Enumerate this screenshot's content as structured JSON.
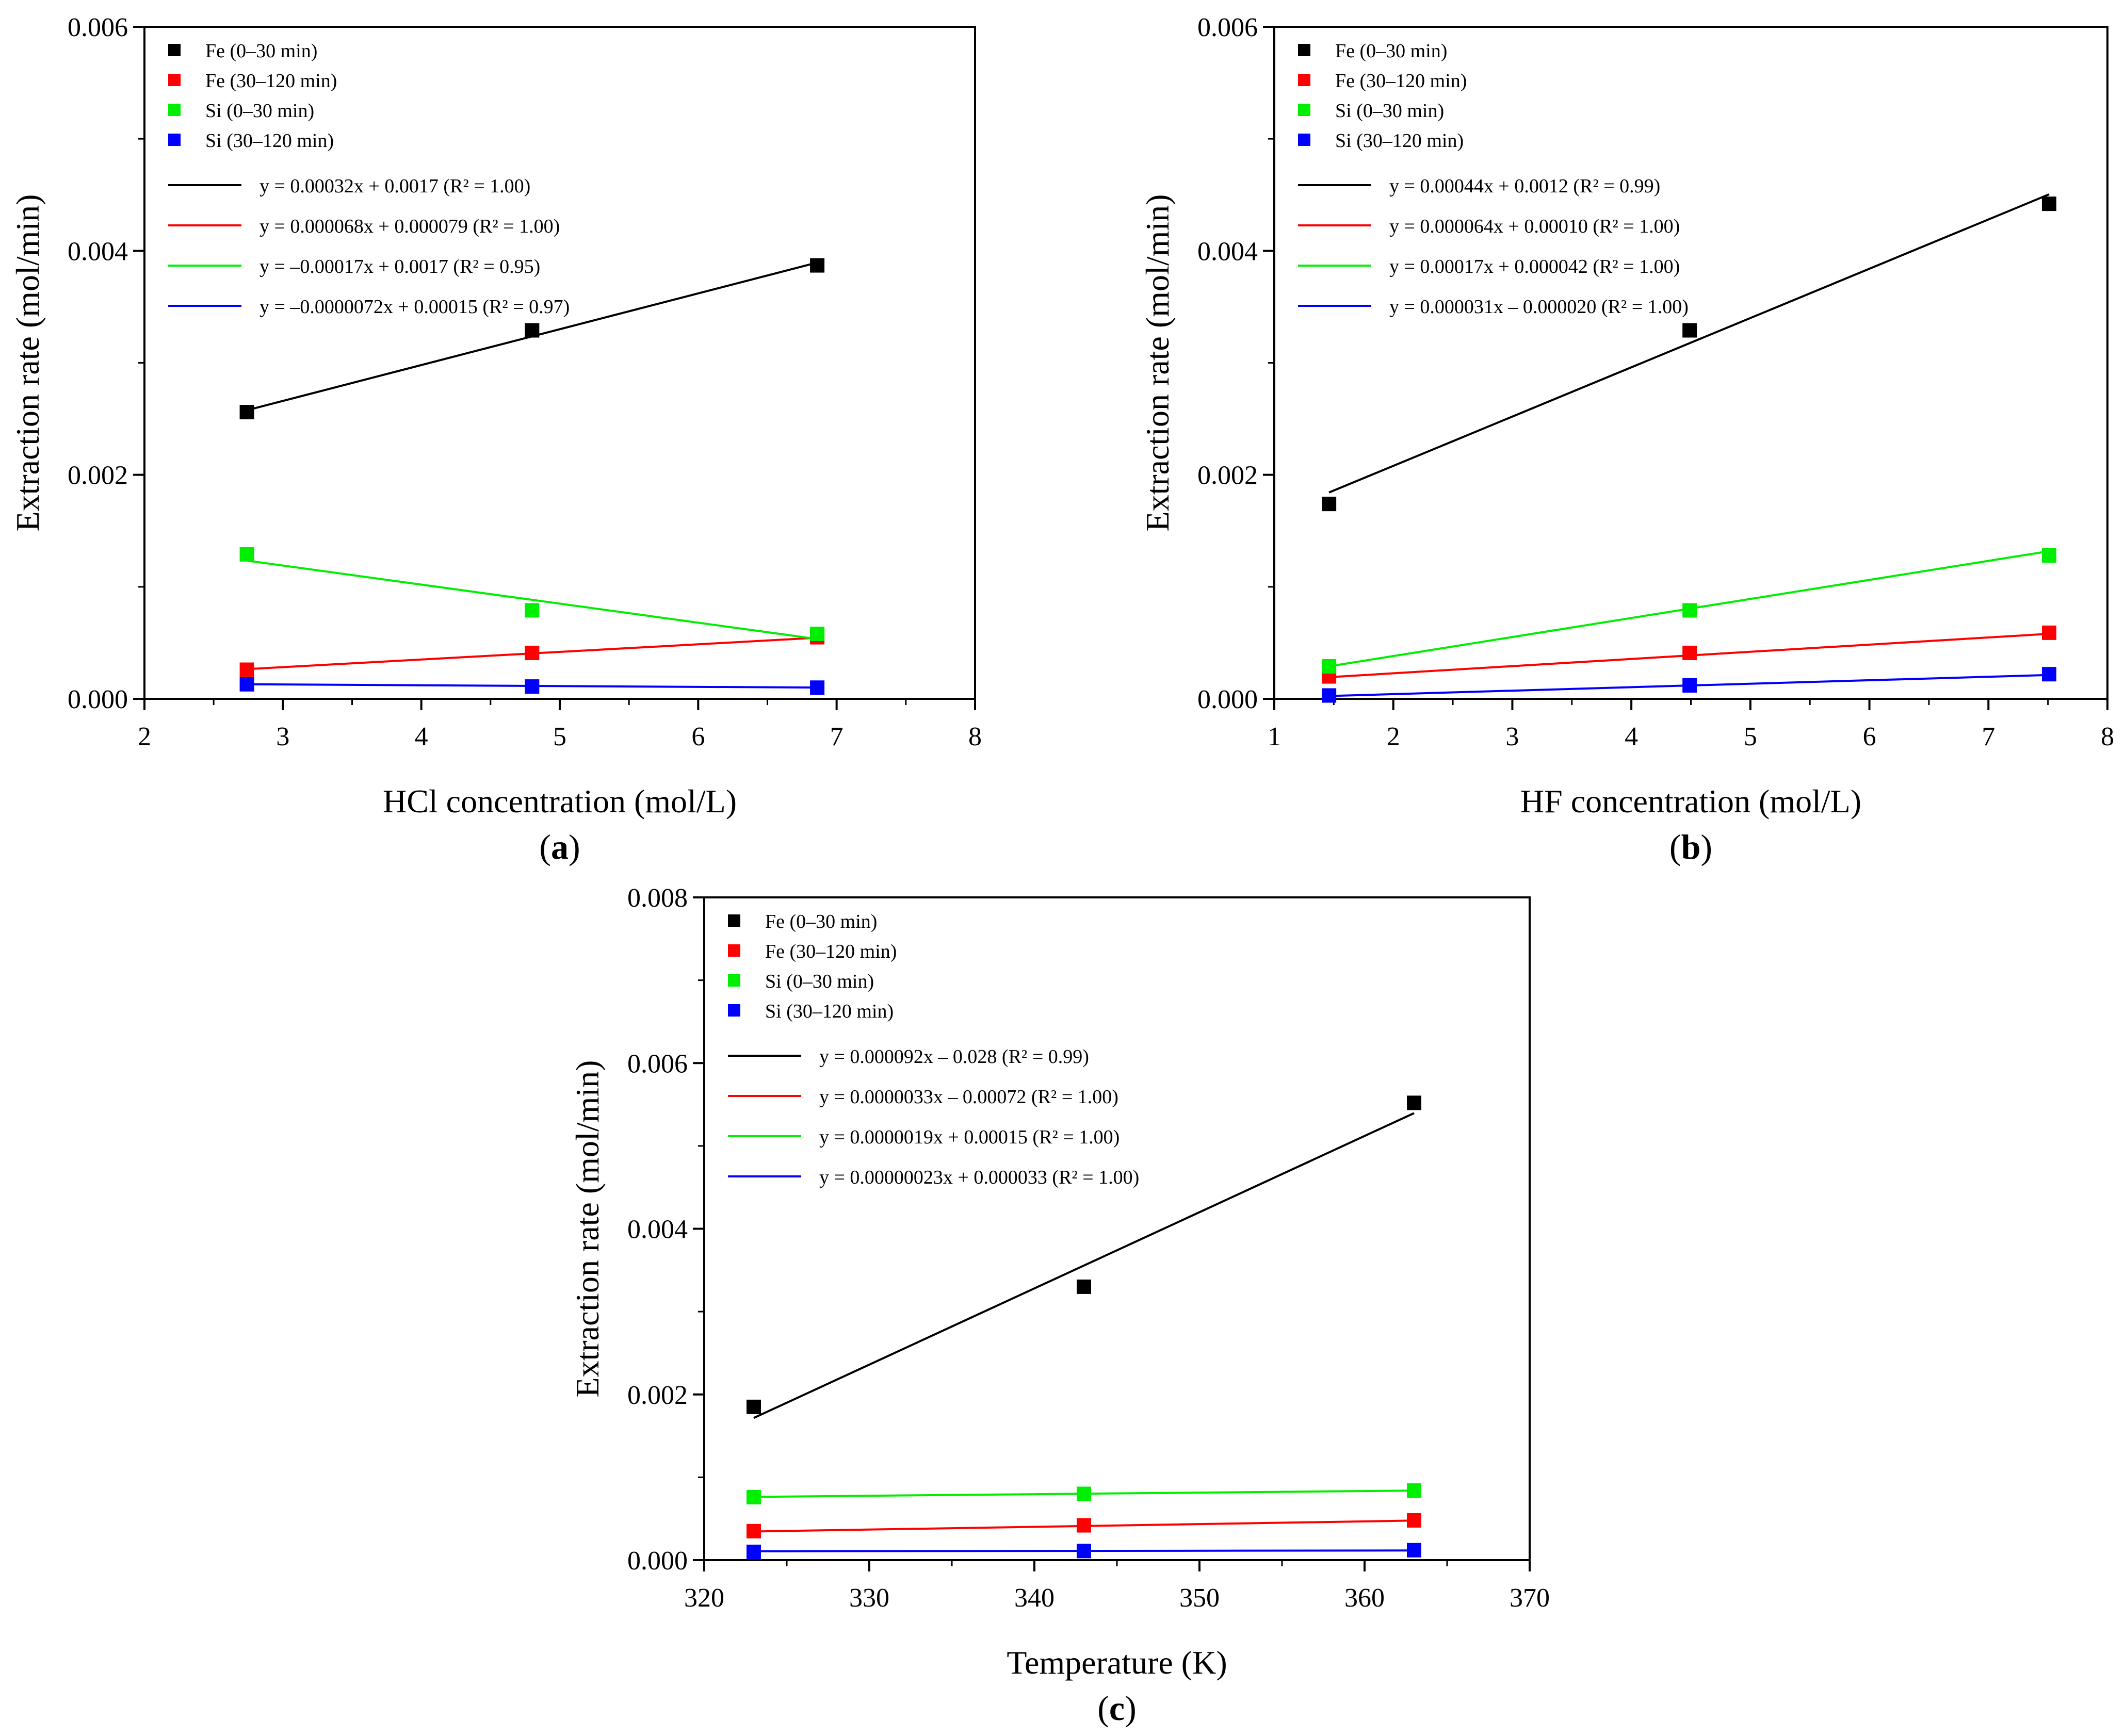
{
  "figure": {
    "colors": {
      "fe_early": "#000000",
      "fe_late": "#ff0000",
      "si_early": "#00ee00",
      "si_late": "#0000ff",
      "axis": "#000000"
    }
  },
  "chart_data": [
    {
      "type": "scatter",
      "panel_label": "a",
      "xlabel": "HCl concentration (mol/L)",
      "ylabel": "Extraction rate (mol/min)",
      "xlim": [
        2,
        8
      ],
      "ylim": [
        0,
        0.006
      ],
      "x_ticks": [
        "2",
        "3",
        "4",
        "5",
        "6",
        "7",
        "8"
      ],
      "y_ticks": [
        "0.000",
        "0.002",
        "0.004",
        "0.006"
      ],
      "legend_placement": "top-left",
      "series": [
        {
          "name": "Fe (0–30 min)",
          "color": "#000000",
          "x": [
            2.74,
            4.8,
            6.86
          ],
          "y": [
            0.00256,
            0.00329,
            0.00387
          ]
        },
        {
          "name": "Fe (30–120 min)",
          "color": "#ff0000",
          "x": [
            2.74,
            4.8,
            6.86
          ],
          "y": [
            0.00026,
            0.00041,
            0.00055
          ]
        },
        {
          "name": "Si (0–30 min)",
          "color": "#00ee00",
          "x": [
            2.74,
            4.8,
            6.86
          ],
          "y": [
            0.00129,
            0.00079,
            0.00058
          ]
        },
        {
          "name": "Si (30–120 min)",
          "color": "#0000ff",
          "x": [
            2.74,
            4.8,
            6.86
          ],
          "y": [
            0.00013,
            0.00011,
            0.0001
          ]
        }
      ],
      "fits": [
        {
          "label": "y = 0.00032x + 0.0017 (R² = 1.00)",
          "color": "#000000",
          "slope": 0.00032,
          "intercept": 0.0017,
          "x_range": [
            2.74,
            6.86
          ]
        },
        {
          "label": "y = 0.000068x + 0.000079 (R² = 1.00)",
          "color": "#ff0000",
          "slope": 6.8e-05,
          "intercept": 7.9e-05,
          "x_range": [
            2.74,
            6.86
          ]
        },
        {
          "label": "y = –0.00017x + 0.0017 (R² = 0.95)",
          "color": "#00ee00",
          "slope": -0.00017,
          "intercept": 0.0017,
          "x_range": [
            2.74,
            6.86
          ]
        },
        {
          "label": "y = –0.0000072x + 0.00015 (R² = 0.97)",
          "color": "#0000ff",
          "slope": -7.2e-06,
          "intercept": 0.00015,
          "x_range": [
            2.74,
            6.86
          ]
        }
      ]
    },
    {
      "type": "scatter",
      "panel_label": "b",
      "xlabel": "HF concentration (mol/L)",
      "ylabel": "Extraction rate (mol/min)",
      "xlim": [
        1,
        8
      ],
      "ylim": [
        0,
        0.006
      ],
      "x_ticks": [
        "1",
        "2",
        "3",
        "4",
        "5",
        "6",
        "7",
        "8"
      ],
      "y_ticks": [
        "0.000",
        "0.002",
        "0.004",
        "0.006"
      ],
      "legend_placement": "top-left",
      "series": [
        {
          "name": "Fe (0–30 min)",
          "color": "#000000",
          "x": [
            1.46,
            4.49,
            7.51
          ],
          "y": [
            0.00174,
            0.00329,
            0.00442
          ]
        },
        {
          "name": "Fe (30–120 min)",
          "color": "#ff0000",
          "x": [
            1.46,
            4.49,
            7.51
          ],
          "y": [
            0.0002,
            0.00041,
            0.00059
          ]
        },
        {
          "name": "Si (0–30 min)",
          "color": "#00ee00",
          "x": [
            1.46,
            4.49,
            7.51
          ],
          "y": [
            0.00029,
            0.00079,
            0.00128
          ]
        },
        {
          "name": "Si (30–120 min)",
          "color": "#0000ff",
          "x": [
            1.46,
            4.49,
            7.51
          ],
          "y": [
            3e-05,
            0.00012,
            0.00022
          ]
        }
      ],
      "fits": [
        {
          "label": "y = 0.00044x + 0.0012 (R² = 0.99)",
          "color": "#000000",
          "slope": 0.00044,
          "intercept": 0.0012,
          "x_range": [
            1.46,
            7.51
          ]
        },
        {
          "label": "y = 0.000064x + 0.00010 (R² = 1.00)",
          "color": "#ff0000",
          "slope": 6.4e-05,
          "intercept": 0.0001,
          "x_range": [
            1.46,
            7.51
          ]
        },
        {
          "label": "y = 0.00017x + 0.000042 (R² = 1.00)",
          "color": "#00ee00",
          "slope": 0.00017,
          "intercept": 4.2e-05,
          "x_range": [
            1.46,
            7.51
          ]
        },
        {
          "label": "y = 0.000031x – 0.000020 (R² = 1.00)",
          "color": "#0000ff",
          "slope": 3.1e-05,
          "intercept": -2e-05,
          "x_range": [
            1.46,
            7.51
          ]
        }
      ]
    },
    {
      "type": "scatter",
      "panel_label": "c",
      "xlabel": "Temperature (K)",
      "ylabel": "Extraction rate (mol/min)",
      "xlim": [
        320,
        370
      ],
      "ylim": [
        0,
        0.008
      ],
      "x_ticks": [
        "320",
        "330",
        "340",
        "350",
        "360",
        "370"
      ],
      "y_ticks": [
        "0.000",
        "0.002",
        "0.004",
        "0.006",
        "0.008"
      ],
      "legend_placement": "top-left",
      "series": [
        {
          "name": "Fe (0–30 min)",
          "color": "#000000",
          "x": [
            323,
            343,
            363
          ],
          "y": [
            0.00185,
            0.0033,
            0.00552
          ]
        },
        {
          "name": "Fe (30–120 min)",
          "color": "#ff0000",
          "x": [
            323,
            343,
            363
          ],
          "y": [
            0.00035,
            0.00042,
            0.00048
          ]
        },
        {
          "name": "Si (0–30 min)",
          "color": "#00ee00",
          "x": [
            323,
            343,
            363
          ],
          "y": [
            0.00076,
            0.0008,
            0.00084
          ]
        },
        {
          "name": "Si (30–120 min)",
          "color": "#0000ff",
          "x": [
            323,
            343,
            363
          ],
          "y": [
            0.0001,
            0.00011,
            0.00012
          ]
        }
      ],
      "fits": [
        {
          "label": "y = 0.000092x – 0.028 (R² = 0.99)",
          "color": "#000000",
          "slope": 9.2e-05,
          "intercept": -0.028,
          "x_range": [
            323,
            363
          ]
        },
        {
          "label": "y = 0.0000033x – 0.00072 (R² = 1.00)",
          "color": "#ff0000",
          "slope": 3.3e-06,
          "intercept": -0.00072,
          "x_range": [
            323,
            363
          ]
        },
        {
          "label": "y = 0.0000019x + 0.00015 (R² = 1.00)",
          "color": "#00ee00",
          "slope": 1.9e-06,
          "intercept": 0.00015,
          "x_range": [
            323,
            363
          ]
        },
        {
          "label": "y = 0.00000023x + 0.000033 (R² = 1.00)",
          "color": "#0000ff",
          "slope": 2.3e-07,
          "intercept": 3.3e-05,
          "x_range": [
            323,
            363
          ]
        }
      ]
    }
  ]
}
